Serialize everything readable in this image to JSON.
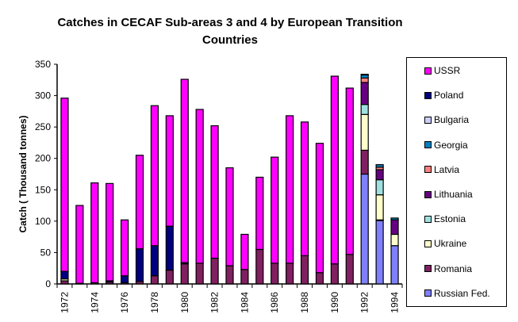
{
  "chart_data": {
    "type": "bar",
    "stacked": true,
    "title": "Catches in CECAF Sub-areas 3 and 4 by European Transition Countries",
    "title_lines": [
      "Catches in CECAF Sub-areas 3 and 4 by European Transition",
      "Countries"
    ],
    "ylabel": "Catch ( Thousand tonnes)",
    "xlabel": "",
    "ylim": [
      0,
      350
    ],
    "yticks": [
      0,
      50,
      100,
      150,
      200,
      250,
      300,
      350
    ],
    "categories": [
      "1972",
      "1973",
      "1974",
      "1975",
      "1976",
      "1977",
      "1978",
      "1979",
      "1980",
      "1981",
      "1982",
      "1983",
      "1984",
      "1985",
      "1986",
      "1987",
      "1988",
      "1989",
      "1990",
      "1991",
      "1992",
      "1993",
      "1994"
    ],
    "xtick_labels_shown": [
      "1972",
      "1974",
      "1976",
      "1978",
      "1980",
      "1982",
      "1984",
      "1986",
      "1988",
      "1990",
      "1992",
      "1994"
    ],
    "legend_position": "right",
    "grid": false,
    "series": [
      {
        "name": "Russian Fed.",
        "color": "#8080FF",
        "values": [
          0,
          0,
          0,
          0,
          0,
          0,
          0,
          0,
          0,
          0,
          0,
          0,
          0,
          0,
          0,
          0,
          0,
          0,
          0,
          0,
          175,
          101,
          61
        ]
      },
      {
        "name": "Romania",
        "color": "#802060",
        "values": [
          5,
          1,
          2,
          3,
          2,
          4,
          13,
          22,
          32,
          33,
          41,
          29,
          23,
          55,
          33,
          33,
          45,
          18,
          32,
          47,
          38,
          1,
          0
        ]
      },
      {
        "name": "Ukraine",
        "color": "#FFFFCC",
        "values": [
          3,
          0,
          0,
          0,
          0,
          0,
          0,
          0,
          0,
          0,
          0,
          0,
          0,
          0,
          0,
          0,
          0,
          0,
          0,
          0,
          57,
          40,
          18
        ]
      },
      {
        "name": "Estonia",
        "color": "#A0E0E0",
        "values": [
          0,
          0,
          0,
          0,
          0,
          0,
          0,
          0,
          0,
          0,
          0,
          0,
          0,
          0,
          0,
          0,
          0,
          0,
          0,
          0,
          16,
          24,
          0
        ]
      },
      {
        "name": "Lithuania",
        "color": "#660080",
        "values": [
          0,
          0,
          0,
          0,
          0,
          0,
          0,
          0,
          0,
          0,
          0,
          0,
          0,
          0,
          0,
          0,
          0,
          0,
          0,
          0,
          35,
          16,
          23
        ]
      },
      {
        "name": "Latvia",
        "color": "#FF8080",
        "values": [
          0,
          0,
          0,
          0,
          0,
          0,
          0,
          0,
          0,
          0,
          0,
          0,
          0,
          0,
          0,
          0,
          0,
          0,
          0,
          0,
          7,
          4,
          0
        ]
      },
      {
        "name": "Georgia",
        "color": "#0080C0",
        "values": [
          0,
          0,
          0,
          0,
          0,
          0,
          0,
          0,
          0,
          0,
          0,
          0,
          0,
          0,
          0,
          0,
          0,
          0,
          0,
          0,
          5,
          4,
          3
        ]
      },
      {
        "name": "Bulgaria",
        "color": "#CCCCFF",
        "values": [
          0,
          0,
          0,
          0,
          0,
          0,
          0,
          0,
          0,
          0,
          0,
          0,
          0,
          0,
          0,
          0,
          0,
          0,
          0,
          0,
          1,
          0,
          0
        ]
      },
      {
        "name": "Poland",
        "color": "#000080",
        "values": [
          12,
          0,
          0,
          2,
          11,
          52,
          48,
          70,
          2,
          0,
          0,
          0,
          0,
          0,
          0,
          0,
          0,
          0,
          0,
          0,
          0,
          0,
          0
        ]
      },
      {
        "name": "USSR",
        "color": "#FF00FF",
        "values": [
          276,
          124,
          159,
          155,
          89,
          149,
          223,
          176,
          292,
          245,
          211,
          156,
          56,
          115,
          169,
          235,
          213,
          206,
          299,
          265,
          0,
          0,
          0
        ]
      }
    ],
    "legend_order": [
      "USSR",
      "Poland",
      "Bulgaria",
      "Georgia",
      "Latvia",
      "Lithuania",
      "Estonia",
      "Ukraine",
      "Romania",
      "Russian Fed."
    ]
  }
}
